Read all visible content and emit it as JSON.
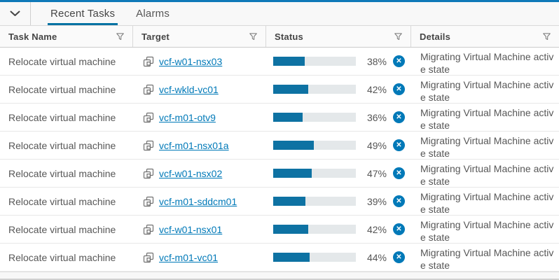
{
  "panel": {
    "tabs": [
      {
        "label": "Recent Tasks",
        "active": true
      },
      {
        "label": "Alarms",
        "active": false
      }
    ]
  },
  "table": {
    "columns": [
      {
        "label": "Task Name"
      },
      {
        "label": "Target"
      },
      {
        "label": "Status"
      },
      {
        "label": "Details"
      }
    ],
    "rows": [
      {
        "task": "Relocate virtual machine",
        "target": "vcf-w01-nsx03",
        "progress": 38,
        "progress_label": "38%",
        "details": "Migrating Virtual Machine active state"
      },
      {
        "task": "Relocate virtual machine",
        "target": "vcf-wkld-vc01",
        "progress": 42,
        "progress_label": "42%",
        "details": "Migrating Virtual Machine active state"
      },
      {
        "task": "Relocate virtual machine",
        "target": "vcf-m01-otv9",
        "progress": 36,
        "progress_label": "36%",
        "details": "Migrating Virtual Machine active state"
      },
      {
        "task": "Relocate virtual machine",
        "target": "vcf-m01-nsx01a",
        "progress": 49,
        "progress_label": "49%",
        "details": "Migrating Virtual Machine active state"
      },
      {
        "task": "Relocate virtual machine",
        "target": "vcf-w01-nsx02",
        "progress": 47,
        "progress_label": "47%",
        "details": "Migrating Virtual Machine active state"
      },
      {
        "task": "Relocate virtual machine",
        "target": "vcf-m01-sddcm01",
        "progress": 39,
        "progress_label": "39%",
        "details": "Migrating Virtual Machine active state"
      },
      {
        "task": "Relocate virtual machine",
        "target": "vcf-w01-nsx01",
        "progress": 42,
        "progress_label": "42%",
        "details": "Migrating Virtual Machine active state"
      },
      {
        "task": "Relocate virtual machine",
        "target": "vcf-m01-vc01",
        "progress": 44,
        "progress_label": "44%",
        "details": "Migrating Virtual Machine active state"
      }
    ]
  },
  "icons": {
    "collapse": "chevron-down-icon",
    "filter": "filter-funnel-icon",
    "target": "virtual-machine-icon",
    "cancel": "cancel-task-icon",
    "cancel_glyph": "✕"
  },
  "colors": {
    "top_bar": "#0f79b8",
    "tab_underline": "#0072a3",
    "link": "#0079b8",
    "progress_fill": "#0e72a3",
    "progress_track": "#e4e8ea",
    "cancel_circle": "#0079b8"
  }
}
